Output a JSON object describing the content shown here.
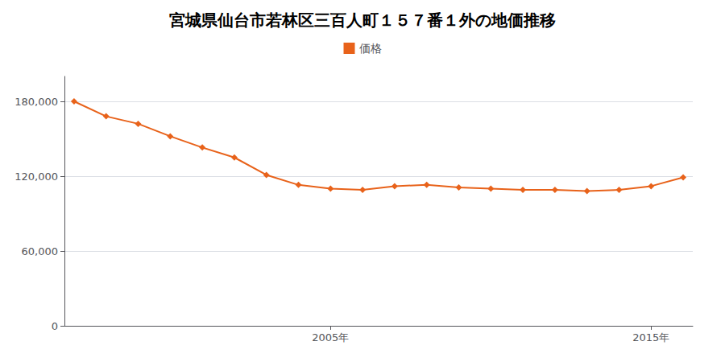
{
  "chart_data": {
    "type": "line",
    "title": "宮城県仙台市若林区三百人町１５７番１外の地価推移",
    "x": [
      1997,
      1998,
      1999,
      2000,
      2001,
      2002,
      2003,
      2004,
      2005,
      2006,
      2007,
      2008,
      2009,
      2010,
      2011,
      2012,
      2013,
      2014,
      2015,
      2016
    ],
    "series": [
      {
        "name": "価格",
        "color": "#E8621A",
        "marker": "diamond",
        "values": [
          180000,
          168000,
          162000,
          152000,
          143000,
          135000,
          121000,
          113000,
          110000,
          109000,
          112000,
          113000,
          111000,
          110000,
          109000,
          109000,
          108000,
          109000,
          112000,
          119000
        ]
      }
    ],
    "xlim": [
      1996.7,
      2016.3
    ],
    "xticks": [
      {
        "value": 2005,
        "label": "2005年"
      },
      {
        "value": 2015,
        "label": "2015年"
      }
    ],
    "ylim": [
      0,
      200000
    ],
    "yticks": [
      0,
      {
        "value": 60000,
        "label": "60,000"
      },
      {
        "value": 120000,
        "label": "120,000"
      },
      {
        "value": 180000,
        "label": "180,000"
      }
    ],
    "grid": true,
    "legend": "top"
  }
}
